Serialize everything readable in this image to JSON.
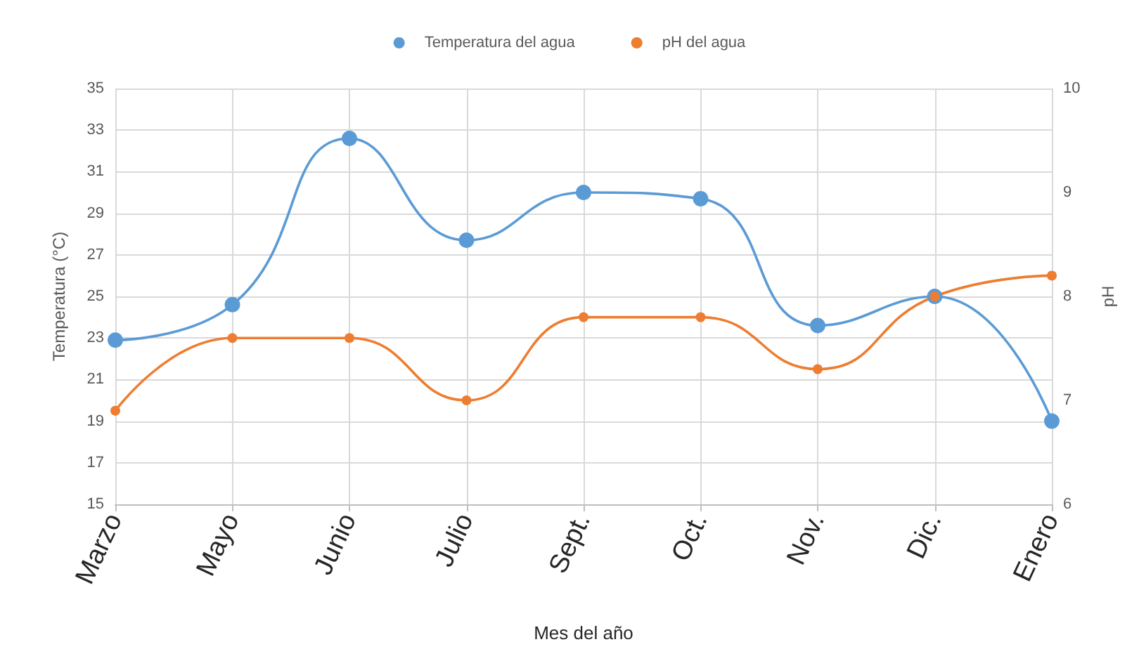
{
  "chart_data": {
    "type": "line",
    "xlabel": "Mes del año",
    "ylabel": "Temperatura (°C)",
    "y2label": "pH",
    "categories": [
      "Marzo",
      "Mayo",
      "Junio",
      "Julio",
      "Sept.",
      "Oct.",
      "Nov.",
      "Dic.",
      "Enero"
    ],
    "series": [
      {
        "name": "Temperatura del agua",
        "color": "#5b9bd5",
        "values": [
          22.9,
          24.6,
          32.6,
          27.7,
          30.0,
          29.7,
          23.6,
          25.0,
          19.0
        ]
      },
      {
        "name": "pH del agua",
        "color": "#ed7d31",
        "axis": "y2",
        "values": [
          6.9,
          7.6,
          7.6,
          7.0,
          7.8,
          7.8,
          7.3,
          8.0,
          8.2
        ]
      }
    ],
    "ylim": [
      15,
      35
    ],
    "yticks": [
      15,
      17,
      19,
      21,
      23,
      25,
      27,
      29,
      31,
      33,
      35
    ],
    "y2lim": [
      6,
      10
    ],
    "y2ticks": [
      6,
      7,
      8,
      9,
      10
    ],
    "grid": true,
    "legend": "top",
    "marker": "circle",
    "line_style": "solid"
  }
}
